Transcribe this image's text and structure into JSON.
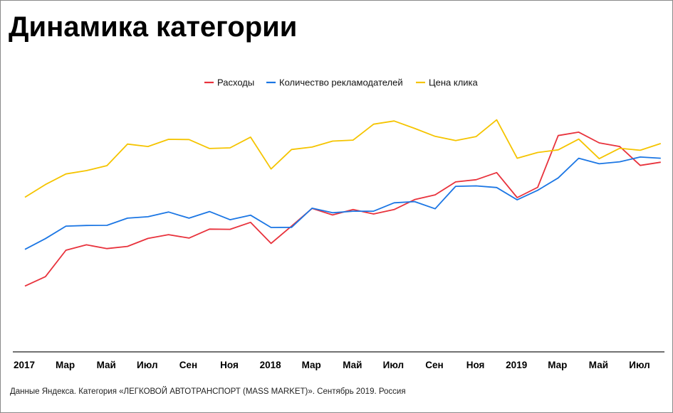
{
  "title": "Динамика категории",
  "footer": "Данные Яндекса. Категория «ЛЕГКОВОЙ АВТОТРАНСПОРТ (MASS MARKET)». Сентябрь 2019. Россия",
  "chart_data": {
    "type": "line",
    "title": "Динамика категории",
    "xlabel": "",
    "ylabel": "",
    "y_axis_shown": false,
    "grid": false,
    "legend_position": "top-center",
    "x_tick_labels": [
      "2017",
      "Мар",
      "Май",
      "Июл",
      "Сен",
      "Ноя",
      "2018",
      "Мар",
      "Май",
      "Июл",
      "Сен",
      "Ноя",
      "2019",
      "Мар",
      "Май",
      "Июл"
    ],
    "ylim": [
      0,
      100
    ],
    "series": [
      {
        "name": "Расходы",
        "color": "#e8323c",
        "values": [
          6.3,
          11.0,
          24.3,
          27.0,
          25.1,
          26.2,
          30.2,
          32.1,
          30.4,
          34.9,
          34.8,
          38.3,
          27.7,
          36.4,
          45.3,
          42.0,
          44.7,
          42.5,
          44.7,
          49.7,
          52.1,
          58.6,
          59.7,
          63.3,
          50.7,
          55.9,
          81.9,
          83.6,
          78.2,
          76.4,
          66.9,
          68.5
        ]
      },
      {
        "name": "Количество рекламодателей",
        "color": "#1b76e4",
        "values": [
          24.7,
          30.1,
          36.4,
          36.7,
          36.8,
          40.4,
          41.1,
          43.5,
          40.4,
          43.7,
          39.6,
          41.9,
          35.7,
          35.8,
          45.4,
          43.1,
          43.9,
          43.9,
          48.1,
          48.7,
          45.1,
          56.4,
          56.6,
          55.8,
          49.6,
          54.4,
          60.6,
          70.5,
          67.7,
          68.7,
          71.1,
          70.5
        ]
      },
      {
        "name": "Цена клика",
        "color": "#f5c400",
        "values": [
          50.9,
          57.3,
          62.6,
          64.3,
          66.8,
          77.6,
          76.4,
          80.0,
          79.9,
          75.4,
          75.7,
          81.1,
          65.1,
          74.9,
          76.1,
          79.1,
          79.6,
          87.6,
          89.2,
          85.5,
          81.5,
          79.4,
          81.4,
          89.8,
          70.5,
          73.4,
          74.7,
          80.1,
          70.3,
          75.5,
          74.5,
          77.9
        ]
      }
    ]
  }
}
